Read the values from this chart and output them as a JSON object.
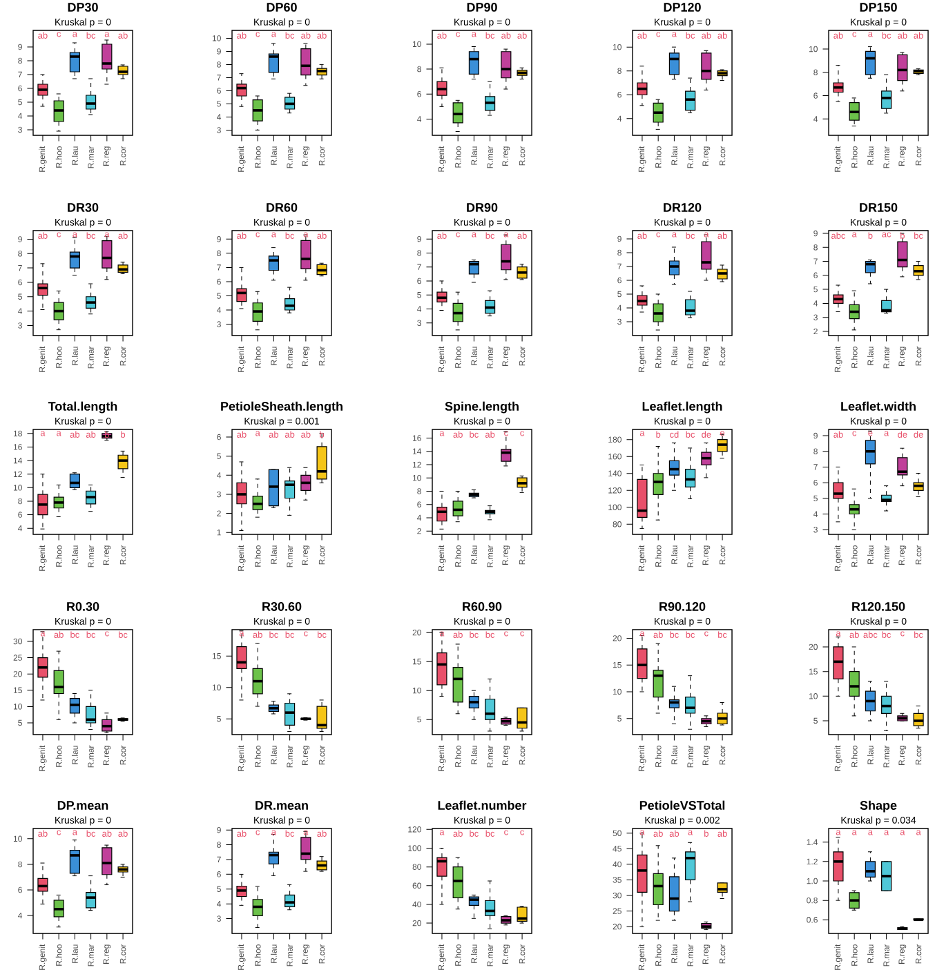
{
  "chart_data": [
    {
      "type": "box",
      "title": "DP30",
      "subtitle": "Kruskal p = 0",
      "categories": [
        "R.genit",
        "R.hoo",
        "R.lau",
        "R.mar",
        "R.reg",
        "R.cor"
      ],
      "colors": [
        "#e8506a",
        "#6cc24a",
        "#3a8fd8",
        "#4fc8d8",
        "#c0409a",
        "#f5c518"
      ],
      "ylim": [
        2.6,
        10.2
      ],
      "yticks": [
        3,
        4,
        5,
        6,
        7,
        8,
        9
      ],
      "boxes": [
        {
          "low": 4.7,
          "q1": 5.5,
          "median": 5.9,
          "q3": 6.3,
          "high": 7.0
        },
        {
          "low": 2.9,
          "q1": 3.6,
          "median": 4.4,
          "q3": 5.1,
          "high": 5.6
        },
        {
          "low": 6.7,
          "q1": 7.2,
          "median": 8.3,
          "q3": 8.6,
          "high": 9.3
        },
        {
          "low": 4.1,
          "q1": 4.5,
          "median": 4.9,
          "q3": 5.5,
          "high": 6.7
        },
        {
          "low": 6.3,
          "q1": 7.4,
          "median": 7.8,
          "q3": 9.2,
          "high": 9.5
        },
        {
          "low": 6.7,
          "q1": 7.0,
          "median": 7.2,
          "q3": 7.6,
          "high": 7.7
        }
      ],
      "annotations": [
        "ab",
        "c",
        "a",
        "bc",
        "a",
        "ab"
      ]
    },
    {
      "type": "box",
      "title": "DP60",
      "subtitle": "Kruskal p = 0",
      "categories": [
        "R.genit",
        "R.hoo",
        "R.lau",
        "R.mar",
        "R.reg",
        "R.cor"
      ],
      "colors": [
        "#e8506a",
        "#6cc24a",
        "#3a8fd8",
        "#4fc8d8",
        "#c0409a",
        "#f5c518"
      ],
      "ylim": [
        2.6,
        10.6
      ],
      "yticks": [
        3,
        4,
        5,
        6,
        7,
        8,
        9,
        10
      ],
      "boxes": [
        {
          "low": 4.8,
          "q1": 5.6,
          "median": 6.2,
          "q3": 6.5,
          "high": 7.3
        },
        {
          "low": 3.0,
          "q1": 3.7,
          "median": 4.5,
          "q3": 5.3,
          "high": 5.6
        },
        {
          "low": 6.9,
          "q1": 7.4,
          "median": 8.6,
          "q3": 8.8,
          "high": 9.6
        },
        {
          "low": 4.3,
          "q1": 4.6,
          "median": 5.0,
          "q3": 5.5,
          "high": 5.8
        },
        {
          "low": 6.4,
          "q1": 7.2,
          "median": 7.9,
          "q3": 9.2,
          "high": 9.6
        },
        {
          "low": 6.9,
          "q1": 7.2,
          "median": 7.5,
          "q3": 7.7,
          "high": 8.0
        }
      ],
      "annotations": [
        "ab",
        "c",
        "a",
        "bc",
        "ab",
        "ab"
      ]
    },
    {
      "type": "box",
      "title": "DP90",
      "subtitle": "Kruskal p = 0",
      "categories": [
        "R.genit",
        "R.hoo",
        "R.lau",
        "R.mar",
        "R.reg",
        "R.cor"
      ],
      "colors": [
        "#e8506a",
        "#6cc24a",
        "#3a8fd8",
        "#4fc8d8",
        "#c0409a",
        "#f5c518"
      ],
      "ylim": [
        2.7,
        11.1
      ],
      "yticks": [
        4,
        6,
        8,
        10
      ],
      "boxes": [
        {
          "low": 5.0,
          "q1": 5.9,
          "median": 6.4,
          "q3": 7.0,
          "high": 8.1
        },
        {
          "low": 3.0,
          "q1": 3.7,
          "median": 4.4,
          "q3": 5.3,
          "high": 5.5
        },
        {
          "low": 7.2,
          "q1": 7.6,
          "median": 8.8,
          "q3": 9.4,
          "high": 9.8
        },
        {
          "low": 4.3,
          "q1": 4.7,
          "median": 5.3,
          "q3": 5.8,
          "high": 7.0
        },
        {
          "low": 6.4,
          "q1": 7.3,
          "median": 8.0,
          "q3": 9.4,
          "high": 9.6
        },
        {
          "low": 7.2,
          "q1": 7.5,
          "median": 7.7,
          "q3": 7.9,
          "high": 8.1
        }
      ],
      "annotations": [
        "ab",
        "c",
        "a",
        "bc",
        "ab",
        "ab"
      ]
    },
    {
      "type": "box",
      "title": "DP120",
      "subtitle": "Kruskal p = 0",
      "categories": [
        "R.genit",
        "R.hoo",
        "R.lau",
        "R.mar",
        "R.reg",
        "R.cor"
      ],
      "colors": [
        "#e8506a",
        "#6cc24a",
        "#3a8fd8",
        "#4fc8d8",
        "#c0409a",
        "#f5c518"
      ],
      "ylim": [
        2.6,
        11.4
      ],
      "yticks": [
        4,
        6,
        8,
        10
      ],
      "boxes": [
        {
          "low": 5.1,
          "q1": 6.0,
          "median": 6.5,
          "q3": 7.0,
          "high": 8.4
        },
        {
          "low": 3.1,
          "q1": 3.7,
          "median": 4.5,
          "q3": 5.3,
          "high": 5.6
        },
        {
          "low": 7.3,
          "q1": 7.7,
          "median": 9.0,
          "q3": 9.5,
          "high": 10.0
        },
        {
          "low": 4.5,
          "q1": 4.7,
          "median": 5.6,
          "q3": 6.3,
          "high": 7.4
        },
        {
          "low": 6.4,
          "q1": 7.3,
          "median": 8.0,
          "q3": 9.5,
          "high": 9.7
        },
        {
          "low": 7.2,
          "q1": 7.6,
          "median": 7.8,
          "q3": 8.0,
          "high": 8.1
        }
      ],
      "annotations": [
        "ab",
        "c",
        "a",
        "bc",
        "ab",
        "ab"
      ]
    },
    {
      "type": "box",
      "title": "DP150",
      "subtitle": "Kruskal p = 0",
      "categories": [
        "R.genit",
        "R.hoo",
        "R.lau",
        "R.mar",
        "R.reg",
        "R.cor"
      ],
      "colors": [
        "#e8506a",
        "#6cc24a",
        "#3a8fd8",
        "#4fc8d8",
        "#c0409a",
        "#f5c518"
      ],
      "ylim": [
        2.6,
        11.6
      ],
      "yticks": [
        4,
        6,
        8,
        10
      ],
      "boxes": [
        {
          "low": 5.5,
          "q1": 6.3,
          "median": 6.7,
          "q3": 7.1,
          "high": 8.6
        },
        {
          "low": 3.4,
          "q1": 3.9,
          "median": 4.6,
          "q3": 5.4,
          "high": 5.8
        },
        {
          "low": 7.5,
          "q1": 7.8,
          "median": 9.2,
          "q3": 9.8,
          "high": 10.2
        },
        {
          "low": 4.5,
          "q1": 4.9,
          "median": 5.8,
          "q3": 6.4,
          "high": 7.8
        },
        {
          "low": 6.4,
          "q1": 7.3,
          "median": 8.2,
          "q3": 9.5,
          "high": 9.7
        },
        {
          "low": 7.8,
          "q1": 7.9,
          "median": 8.1,
          "q3": 8.2,
          "high": 8.3
        }
      ],
      "annotations": [
        "ab",
        "c",
        "a",
        "bc",
        "ab",
        "ab"
      ]
    },
    {
      "type": "box",
      "title": "DR30",
      "subtitle": "Kruskal p = 0",
      "categories": [
        "R.genit",
        "R.hoo",
        "R.lau",
        "R.mar",
        "R.reg",
        "R.cor"
      ],
      "colors": [
        "#e8506a",
        "#6cc24a",
        "#3a8fd8",
        "#4fc8d8",
        "#c0409a",
        "#f5c518"
      ],
      "ylim": [
        2.3,
        9.6
      ],
      "yticks": [
        3,
        4,
        5,
        6,
        7,
        8,
        9
      ],
      "boxes": [
        {
          "low": 4.1,
          "q1": 5.1,
          "median": 5.6,
          "q3": 5.9,
          "high": 7.3
        },
        {
          "low": 2.7,
          "q1": 3.4,
          "median": 4.0,
          "q3": 4.6,
          "high": 5.4
        },
        {
          "low": 6.5,
          "q1": 7.0,
          "median": 7.8,
          "q3": 8.1,
          "high": 9.1
        },
        {
          "low": 3.8,
          "q1": 4.2,
          "median": 4.6,
          "q3": 5.0,
          "high": 5.9
        },
        {
          "low": 6.2,
          "q1": 7.0,
          "median": 7.7,
          "q3": 8.9,
          "high": 9.2
        },
        {
          "low": 6.6,
          "q1": 6.7,
          "median": 6.9,
          "q3": 7.2,
          "high": 7.4
        }
      ],
      "annotations": [
        "ab",
        "c",
        "a",
        "bc",
        "a",
        "ab"
      ]
    },
    {
      "type": "box",
      "title": "DR60",
      "subtitle": "Kruskal p = 0",
      "categories": [
        "R.genit",
        "R.hoo",
        "R.lau",
        "R.mar",
        "R.reg",
        "R.cor"
      ],
      "colors": [
        "#e8506a",
        "#6cc24a",
        "#3a8fd8",
        "#4fc8d8",
        "#c0409a",
        "#f5c518"
      ],
      "ylim": [
        2.2,
        9.6
      ],
      "yticks": [
        3,
        4,
        5,
        6,
        7,
        8,
        9
      ],
      "boxes": [
        {
          "low": 4.1,
          "q1": 4.6,
          "median": 5.2,
          "q3": 5.5,
          "high": 7.0
        },
        {
          "low": 2.6,
          "q1": 3.2,
          "median": 3.9,
          "q3": 4.5,
          "high": 5.3
        },
        {
          "low": 6.1,
          "q1": 6.8,
          "median": 7.5,
          "q3": 7.8,
          "high": 8.4
        },
        {
          "low": 3.8,
          "q1": 4.0,
          "median": 4.3,
          "q3": 4.8,
          "high": 5.6
        },
        {
          "low": 6.1,
          "q1": 6.9,
          "median": 7.6,
          "q3": 8.9,
          "high": 9.3
        },
        {
          "low": 6.4,
          "q1": 6.5,
          "median": 6.8,
          "q3": 7.2,
          "high": 7.3
        }
      ],
      "annotations": [
        "ab",
        "c",
        "a",
        "bc",
        "a",
        "ab"
      ]
    },
    {
      "type": "box",
      "title": "DR90",
      "subtitle": "Kruskal p = 0",
      "categories": [
        "R.genit",
        "R.hoo",
        "R.lau",
        "R.mar",
        "R.reg",
        "R.cor"
      ],
      "colors": [
        "#e8506a",
        "#6cc24a",
        "#3a8fd8",
        "#4fc8d8",
        "#c0409a",
        "#f5c518"
      ],
      "ylim": [
        2.1,
        9.6
      ],
      "yticks": [
        3,
        4,
        5,
        6,
        7,
        8,
        9
      ],
      "boxes": [
        {
          "low": 3.9,
          "q1": 4.5,
          "median": 4.8,
          "q3": 5.2,
          "high": 6.0
        },
        {
          "low": 2.5,
          "q1": 3.1,
          "median": 3.7,
          "q3": 4.4,
          "high": 5.2
        },
        {
          "low": 5.9,
          "q1": 6.5,
          "median": 7.2,
          "q3": 7.4,
          "high": 7.5
        },
        {
          "low": 3.5,
          "q1": 3.7,
          "median": 4.1,
          "q3": 4.6,
          "high": 5.3
        },
        {
          "low": 6.1,
          "q1": 6.8,
          "median": 7.4,
          "q3": 8.6,
          "high": 9.3
        },
        {
          "low": 6.1,
          "q1": 6.2,
          "median": 6.6,
          "q3": 7.0,
          "high": 7.2
        }
      ],
      "annotations": [
        "ab",
        "c",
        "a",
        "bc",
        "a",
        "ab"
      ]
    },
    {
      "type": "box",
      "title": "DR120",
      "subtitle": "Kruskal p = 0",
      "categories": [
        "R.genit",
        "R.hoo",
        "R.lau",
        "R.mar",
        "R.reg",
        "R.cor"
      ],
      "colors": [
        "#e8506a",
        "#6cc24a",
        "#3a8fd8",
        "#4fc8d8",
        "#c0409a",
        "#f5c518"
      ],
      "ylim": [
        2.0,
        9.6
      ],
      "yticks": [
        3,
        4,
        5,
        6,
        7,
        8,
        9
      ],
      "boxes": [
        {
          "low": 3.7,
          "q1": 4.2,
          "median": 4.5,
          "q3": 4.9,
          "high": 5.6
        },
        {
          "low": 2.4,
          "q1": 3.0,
          "median": 3.6,
          "q3": 4.3,
          "high": 5.0
        },
        {
          "low": 5.7,
          "q1": 6.4,
          "median": 7.0,
          "q3": 7.4,
          "high": 8.4
        },
        {
          "low": 3.3,
          "q1": 3.5,
          "median": 3.8,
          "q3": 4.6,
          "high": 5.2
        },
        {
          "low": 6.0,
          "q1": 6.8,
          "median": 7.3,
          "q3": 8.8,
          "high": 9.3
        },
        {
          "low": 5.9,
          "q1": 6.1,
          "median": 6.5,
          "q3": 6.8,
          "high": 7.1
        }
      ],
      "annotations": [
        "ab",
        "c",
        "a",
        "bc",
        "a",
        "ab"
      ]
    },
    {
      "type": "box",
      "title": "DR150",
      "subtitle": "Kruskal p = 0",
      "categories": [
        "R.genit",
        "R.hoo",
        "R.lau",
        "R.mar",
        "R.reg",
        "R.cor"
      ],
      "colors": [
        "#e8506a",
        "#6cc24a",
        "#3a8fd8",
        "#4fc8d8",
        "#c0409a",
        "#f5c518"
      ],
      "ylim": [
        1.7,
        9.2
      ],
      "yticks": [
        2,
        3,
        4,
        5,
        6,
        7,
        8,
        9
      ],
      "boxes": [
        {
          "low": 3.4,
          "q1": 4.0,
          "median": 4.3,
          "q3": 4.6,
          "high": 5.3
        },
        {
          "low": 2.1,
          "q1": 2.9,
          "median": 3.4,
          "q3": 3.9,
          "high": 4.9
        },
        {
          "low": 5.4,
          "q1": 6.2,
          "median": 6.8,
          "q3": 7.0,
          "high": 7.1
        },
        {
          "low": 3.3,
          "q1": 3.4,
          "median": 3.5,
          "q3": 4.2,
          "high": 5.0
        },
        {
          "low": 5.9,
          "q1": 6.6,
          "median": 7.1,
          "q3": 8.4,
          "high": 9.0
        },
        {
          "low": 5.7,
          "q1": 6.0,
          "median": 6.3,
          "q3": 6.7,
          "high": 7.0
        }
      ],
      "annotations": [
        "abc",
        "a",
        "b",
        "ac",
        "b",
        "bc"
      ]
    },
    {
      "type": "box",
      "title": "Total.length",
      "subtitle": "Kruskal p = 0",
      "categories": [
        "R.genit",
        "R.hoo",
        "R.lau",
        "R.mar",
        "R.reg",
        "R.cor"
      ],
      "colors": [
        "#e8506a",
        "#6cc24a",
        "#3a8fd8",
        "#4fc8d8",
        "#c0409a",
        "#f5c518"
      ],
      "ylim": [
        3.1,
        18.6
      ],
      "yticks": [
        4,
        6,
        8,
        10,
        12,
        14,
        16,
        18
      ],
      "boxes": [
        {
          "low": 3.9,
          "q1": 6.0,
          "median": 7.5,
          "q3": 9.0,
          "high": 12.0
        },
        {
          "low": 5.7,
          "q1": 7.0,
          "median": 7.8,
          "q3": 8.6,
          "high": 10.4
        },
        {
          "low": 9.7,
          "q1": 10.0,
          "median": 10.7,
          "q3": 12.0,
          "high": 12.2
        },
        {
          "low": 6.5,
          "q1": 7.6,
          "median": 8.6,
          "q3": 9.5,
          "high": 10.4
        },
        {
          "low": 17.0,
          "q1": 17.3,
          "median": 17.6,
          "q3": 18.0,
          "high": 18.3
        },
        {
          "low": 11.5,
          "q1": 12.8,
          "median": 14.0,
          "q3": 14.8,
          "high": 15.4
        }
      ],
      "annotations": [
        "a",
        "a",
        "ab",
        "ab",
        "b",
        "b"
      ]
    },
    {
      "type": "box",
      "title": "PetioleSheath.length",
      "subtitle": "Kruskal p = 0.001",
      "categories": [
        "R.genit",
        "R.hoo",
        "R.lau",
        "R.mar",
        "R.reg",
        "R.cor"
      ],
      "colors": [
        "#e8506a",
        "#6cc24a",
        "#3a8fd8",
        "#4fc8d8",
        "#c0409a",
        "#f5c518"
      ],
      "ylim": [
        0.9,
        6.4
      ],
      "yticks": [
        1,
        2,
        3,
        4,
        5,
        6
      ],
      "boxes": [
        {
          "low": 1.1,
          "q1": 2.5,
          "median": 3.0,
          "q3": 3.6,
          "high": 4.7
        },
        {
          "low": 1.8,
          "q1": 2.2,
          "median": 2.5,
          "q3": 2.9,
          "high": 3.8
        },
        {
          "low": 2.3,
          "q1": 2.4,
          "median": 3.4,
          "q3": 4.3,
          "high": 4.3
        },
        {
          "low": 1.9,
          "q1": 2.8,
          "median": 3.5,
          "q3": 3.7,
          "high": 4.4
        },
        {
          "low": 2.7,
          "q1": 3.2,
          "median": 3.6,
          "q3": 4.0,
          "high": 4.4
        },
        {
          "low": 3.6,
          "q1": 3.8,
          "median": 4.2,
          "q3": 5.5,
          "high": 6.2
        }
      ],
      "annotations": [
        "ab",
        "a",
        "ab",
        "ab",
        "ab",
        "b"
      ]
    },
    {
      "type": "box",
      "title": "Spine.length",
      "subtitle": "Kruskal p = 0",
      "categories": [
        "R.genit",
        "R.hoo",
        "R.lau",
        "R.mar",
        "R.reg",
        "R.cor"
      ],
      "colors": [
        "#e8506a",
        "#6cc24a",
        "#3a8fd8",
        "#4fc8d8",
        "#c0409a",
        "#f5c518"
      ],
      "ylim": [
        1.5,
        17.3
      ],
      "yticks": [
        2,
        4,
        6,
        8,
        10,
        12,
        14,
        16
      ],
      "boxes": [
        {
          "low": 2.3,
          "q1": 3.5,
          "median": 4.9,
          "q3": 5.6,
          "high": 8.0
        },
        {
          "low": 3.4,
          "q1": 4.3,
          "median": 5.2,
          "q3": 6.5,
          "high": 8.0
        },
        {
          "low": 7.0,
          "q1": 7.2,
          "median": 7.5,
          "q3": 7.7,
          "high": 8.2
        },
        {
          "low": 3.7,
          "q1": 4.6,
          "median": 4.9,
          "q3": 5.1,
          "high": 5.8
        },
        {
          "low": 11.8,
          "q1": 12.5,
          "median": 13.8,
          "q3": 14.3,
          "high": 17.0
        },
        {
          "low": 7.8,
          "q1": 8.6,
          "median": 9.2,
          "q3": 10.0,
          "high": 10.3
        }
      ],
      "annotations": [
        "a",
        "ab",
        "bc",
        "ab",
        "c",
        "c"
      ]
    },
    {
      "type": "box",
      "title": "Leaflet.length",
      "subtitle": "Kruskal p = 0",
      "categories": [
        "R.genit",
        "R.hoo",
        "R.lau",
        "R.mar",
        "R.reg",
        "R.cor"
      ],
      "colors": [
        "#e8506a",
        "#6cc24a",
        "#3a8fd8",
        "#4fc8d8",
        "#c0409a",
        "#f5c518"
      ],
      "ylim": [
        68,
        192
      ],
      "yticks": [
        80,
        100,
        120,
        140,
        160,
        180
      ],
      "boxes": [
        {
          "low": 75,
          "q1": 88,
          "median": 96,
          "q3": 133,
          "high": 150
        },
        {
          "low": 85,
          "q1": 115,
          "median": 130,
          "q3": 140,
          "high": 172
        },
        {
          "low": 120,
          "q1": 138,
          "median": 145,
          "q3": 155,
          "high": 176
        },
        {
          "low": 110,
          "q1": 124,
          "median": 133,
          "q3": 145,
          "high": 170
        },
        {
          "low": 135,
          "q1": 150,
          "median": 158,
          "q3": 165,
          "high": 176
        },
        {
          "low": 158,
          "q1": 166,
          "median": 174,
          "q3": 180,
          "high": 186
        }
      ],
      "annotations": [
        "a",
        "b",
        "cd",
        "bc",
        "de",
        "e"
      ]
    },
    {
      "type": "box",
      "title": "Leaflet.width",
      "subtitle": "Kruskal p = 0",
      "categories": [
        "R.genit",
        "R.hoo",
        "R.lau",
        "R.mar",
        "R.reg",
        "R.cor"
      ],
      "colors": [
        "#e8506a",
        "#6cc24a",
        "#3a8fd8",
        "#4fc8d8",
        "#c0409a",
        "#f5c518"
      ],
      "ylim": [
        2.7,
        9.4
      ],
      "yticks": [
        3,
        4,
        5,
        6,
        7,
        8,
        9
      ],
      "boxes": [
        {
          "low": 3.5,
          "q1": 5.0,
          "median": 5.3,
          "q3": 6.0,
          "high": 7.0
        },
        {
          "low": 3.0,
          "q1": 4.0,
          "median": 4.3,
          "q3": 4.6,
          "high": 5.6
        },
        {
          "low": 5.0,
          "q1": 7.2,
          "median": 8.0,
          "q3": 8.7,
          "high": 9.3
        },
        {
          "low": 4.2,
          "q1": 4.8,
          "median": 4.9,
          "q3": 5.2,
          "high": 5.8
        },
        {
          "low": 5.8,
          "q1": 6.5,
          "median": 6.7,
          "q3": 7.6,
          "high": 8.2
        },
        {
          "low": 5.1,
          "q1": 5.5,
          "median": 5.8,
          "q3": 6.0,
          "high": 6.6
        }
      ],
      "annotations": [
        "ab",
        "c",
        "e",
        "a",
        "de",
        "de"
      ]
    },
    {
      "type": "box",
      "title": "R0.30",
      "subtitle": "Kruskal p = 0",
      "categories": [
        "R.genit",
        "R.hoo",
        "R.lau",
        "R.mar",
        "R.reg",
        "R.cor"
      ],
      "colors": [
        "#e8506a",
        "#6cc24a",
        "#3a8fd8",
        "#4fc8d8",
        "#c0409a",
        "#f5c518"
      ],
      "ylim": [
        1.4,
        33.6
      ],
      "yticks": [
        5,
        10,
        15,
        20,
        25,
        30
      ],
      "boxes": [
        {
          "low": 12,
          "q1": 19,
          "median": 22,
          "q3": 25,
          "high": 33
        },
        {
          "low": 6,
          "q1": 14,
          "median": 16,
          "q3": 21,
          "high": 27
        },
        {
          "low": 5,
          "q1": 8,
          "median": 10.5,
          "q3": 12.5,
          "high": 14
        },
        {
          "low": 3,
          "q1": 5,
          "median": 6,
          "q3": 10,
          "high": 15
        },
        {
          "low": 2,
          "q1": 2.5,
          "median": 4,
          "q3": 6,
          "high": 8
        },
        {
          "low": 5.5,
          "q1": 5.8,
          "median": 6,
          "q3": 6.3,
          "high": 6.5
        }
      ],
      "annotations": [
        "a",
        "ab",
        "bc",
        "bc",
        "c",
        "bc"
      ]
    },
    {
      "type": "box",
      "title": "R30.60",
      "subtitle": "Kruskal p = 0",
      "categories": [
        "R.genit",
        "R.hoo",
        "R.lau",
        "R.mar",
        "R.reg",
        "R.cor"
      ],
      "colors": [
        "#e8506a",
        "#6cc24a",
        "#3a8fd8",
        "#4fc8d8",
        "#c0409a",
        "#f5c518"
      ],
      "ylim": [
        2.5,
        19.2
      ],
      "yticks": [
        5,
        10,
        15
      ],
      "boxes": [
        {
          "low": 8,
          "q1": 13,
          "median": 14,
          "q3": 16.5,
          "high": 19
        },
        {
          "low": 7,
          "q1": 9,
          "median": 11,
          "q3": 13,
          "high": 17
        },
        {
          "low": 5.8,
          "q1": 6.2,
          "median": 6.7,
          "q3": 7.2,
          "high": 7.8
        },
        {
          "low": 3,
          "q1": 4,
          "median": 6,
          "q3": 7.5,
          "high": 9
        },
        {
          "low": 4.8,
          "q1": 4.9,
          "median": 5,
          "q3": 5.1,
          "high": 5.2
        },
        {
          "low": 3,
          "q1": 3.5,
          "median": 4,
          "q3": 7,
          "high": 8
        }
      ],
      "annotations": [
        "a",
        "ab",
        "bc",
        "bc",
        "c",
        "bc"
      ]
    },
    {
      "type": "box",
      "title": "R60.90",
      "subtitle": "Kruskal p = 0",
      "categories": [
        "R.genit",
        "R.hoo",
        "R.lau",
        "R.mar",
        "R.reg",
        "R.cor"
      ],
      "colors": [
        "#e8506a",
        "#6cc24a",
        "#3a8fd8",
        "#4fc8d8",
        "#c0409a",
        "#f5c518"
      ],
      "ylim": [
        2.4,
        20.5
      ],
      "yticks": [
        5,
        10,
        15,
        20
      ],
      "boxes": [
        {
          "low": 9,
          "q1": 11,
          "median": 14.5,
          "q3": 16.5,
          "high": 20
        },
        {
          "low": 6,
          "q1": 8,
          "median": 12,
          "q3": 14,
          "high": 18
        },
        {
          "low": 5,
          "q1": 7,
          "median": 8,
          "q3": 9,
          "high": 10
        },
        {
          "low": 3,
          "q1": 5,
          "median": 6,
          "q3": 8.5,
          "high": 12
        },
        {
          "low": 4,
          "q1": 4.2,
          "median": 4.7,
          "q3": 5.2,
          "high": 5.4
        },
        {
          "low": 3,
          "q1": 3.5,
          "median": 4.5,
          "q3": 7,
          "high": 7
        }
      ],
      "annotations": [
        "a",
        "ab",
        "bc",
        "bc",
        "c",
        "c"
      ]
    },
    {
      "type": "box",
      "title": "R90.120",
      "subtitle": "Kruskal p = 0",
      "categories": [
        "R.genit",
        "R.hoo",
        "R.lau",
        "R.mar",
        "R.reg",
        "R.cor"
      ],
      "colors": [
        "#e8506a",
        "#6cc24a",
        "#3a8fd8",
        "#4fc8d8",
        "#c0409a",
        "#f5c518"
      ],
      "ylim": [
        2,
        21.6
      ],
      "yticks": [
        5,
        10,
        15,
        20
      ],
      "boxes": [
        {
          "low": 10,
          "q1": 12.5,
          "median": 15,
          "q3": 18,
          "high": 20.5
        },
        {
          "low": 6,
          "q1": 9,
          "median": 13,
          "q3": 14,
          "high": 19
        },
        {
          "low": 4,
          "q1": 7,
          "median": 8,
          "q3": 8.5,
          "high": 11
        },
        {
          "low": 3,
          "q1": 6,
          "median": 7,
          "q3": 9,
          "high": 13
        },
        {
          "low": 3.5,
          "q1": 4,
          "median": 4.5,
          "q3": 5,
          "high": 5.5
        },
        {
          "low": 3.8,
          "q1": 4,
          "median": 5,
          "q3": 6,
          "high": 8
        }
      ],
      "annotations": [
        "a",
        "ab",
        "bc",
        "bc",
        "c",
        "bc"
      ]
    },
    {
      "type": "box",
      "title": "R120.150",
      "subtitle": "Kruskal p = 0",
      "categories": [
        "R.genit",
        "R.hoo",
        "R.lau",
        "R.mar",
        "R.reg",
        "R.cor"
      ],
      "colors": [
        "#e8506a",
        "#6cc24a",
        "#3a8fd8",
        "#4fc8d8",
        "#c0409a",
        "#f5c518"
      ],
      "ylim": [
        2.2,
        23.5
      ],
      "yticks": [
        5,
        10,
        15,
        20
      ],
      "boxes": [
        {
          "low": 10,
          "q1": 13.5,
          "median": 17,
          "q3": 20,
          "high": 22
        },
        {
          "low": 6,
          "q1": 10,
          "median": 12,
          "q3": 15,
          "high": 20
        },
        {
          "low": 5,
          "q1": 7,
          "median": 9,
          "q3": 11,
          "high": 13
        },
        {
          "low": 3,
          "q1": 6.5,
          "median": 8,
          "q3": 10,
          "high": 13
        },
        {
          "low": 5,
          "q1": 5,
          "median": 5.5,
          "q3": 6,
          "high": 6.5
        },
        {
          "low": 3.5,
          "q1": 4,
          "median": 5,
          "q3": 6.5,
          "high": 8
        }
      ],
      "annotations": [
        "a",
        "ab",
        "abc",
        "bc",
        "c",
        "bc"
      ]
    },
    {
      "type": "box",
      "title": "DP.mean",
      "subtitle": "Kruskal p = 0",
      "categories": [
        "R.genit",
        "R.hoo",
        "R.lau",
        "R.mar",
        "R.reg",
        "R.cor"
      ],
      "colors": [
        "#e8506a",
        "#6cc24a",
        "#3a8fd8",
        "#4fc8d8",
        "#c0409a",
        "#f5c518"
      ],
      "ylim": [
        2.6,
        10.8
      ],
      "yticks": [
        4,
        6,
        8,
        10
      ],
      "boxes": [
        {
          "low": 4.9,
          "q1": 5.9,
          "median": 6.3,
          "q3": 6.9,
          "high": 8.1
        },
        {
          "low": 3.1,
          "q1": 3.9,
          "median": 4.5,
          "q3": 5.2,
          "high": 5.6
        },
        {
          "low": 7.1,
          "q1": 7.3,
          "median": 8.7,
          "q3": 9.1,
          "high": 9.9
        },
        {
          "low": 4.4,
          "q1": 4.6,
          "median": 5.4,
          "q3": 5.8,
          "high": 7.1
        },
        {
          "low": 6.4,
          "q1": 7.2,
          "median": 8.1,
          "q3": 9.3,
          "high": 9.5
        },
        {
          "low": 7.0,
          "q1": 7.4,
          "median": 7.6,
          "q3": 7.8,
          "high": 8.0
        }
      ],
      "annotations": [
        "ab",
        "c",
        "a",
        "bc",
        "ab",
        "ab"
      ]
    },
    {
      "type": "box",
      "title": "DR.mean",
      "subtitle": "Kruskal p = 0",
      "categories": [
        "R.genit",
        "R.hoo",
        "R.lau",
        "R.mar",
        "R.reg",
        "R.cor"
      ],
      "colors": [
        "#e8506a",
        "#6cc24a",
        "#3a8fd8",
        "#4fc8d8",
        "#c0409a",
        "#f5c518"
      ],
      "ylim": [
        2.0,
        9.1
      ],
      "yticks": [
        3,
        4,
        5,
        6,
        7,
        8,
        9
      ],
      "boxes": [
        {
          "low": 3.9,
          "q1": 4.5,
          "median": 4.9,
          "q3": 5.2,
          "high": 6.0
        },
        {
          "low": 2.4,
          "q1": 3.2,
          "median": 3.8,
          "q3": 4.3,
          "high": 5.2
        },
        {
          "low": 5.9,
          "q1": 6.7,
          "median": 7.3,
          "q3": 7.5,
          "high": 8.7
        },
        {
          "low": 3.6,
          "q1": 3.8,
          "median": 4.1,
          "q3": 4.6,
          "high": 5.3
        },
        {
          "low": 6.2,
          "q1": 7.0,
          "median": 7.4,
          "q3": 8.5,
          "high": 8.9
        },
        {
          "low": 6.2,
          "q1": 6.3,
          "median": 6.6,
          "q3": 6.9,
          "high": 7.2
        }
      ],
      "annotations": [
        "ab",
        "c",
        "a",
        "bc",
        "a",
        "ab"
      ]
    },
    {
      "type": "box",
      "title": "Leaflet.number",
      "subtitle": "Kruskal p = 0",
      "categories": [
        "R.genit",
        "R.hoo",
        "R.lau",
        "R.mar",
        "R.reg",
        "R.cor"
      ],
      "colors": [
        "#e8506a",
        "#6cc24a",
        "#3a8fd8",
        "#4fc8d8",
        "#c0409a",
        "#f5c518"
      ],
      "ylim": [
        9,
        121
      ],
      "yticks": [
        20,
        40,
        60,
        80,
        100,
        120
      ],
      "boxes": [
        {
          "low": 40,
          "q1": 70,
          "median": 86,
          "q3": 90,
          "high": 100
        },
        {
          "low": 35,
          "q1": 47,
          "median": 65,
          "q3": 80,
          "high": 90
        },
        {
          "low": 25,
          "q1": 39,
          "median": 45,
          "q3": 48,
          "high": 50
        },
        {
          "low": 14,
          "q1": 28,
          "median": 33,
          "q3": 44,
          "high": 65
        },
        {
          "low": 18,
          "q1": 20,
          "median": 23,
          "q3": 27,
          "high": 28
        },
        {
          "low": 20,
          "q1": 22,
          "median": 25,
          "q3": 37,
          "high": 38
        }
      ],
      "annotations": [
        "a",
        "ab",
        "bc",
        "bc",
        "c",
        "c"
      ]
    },
    {
      "type": "box",
      "title": "PetioleVSTotal",
      "subtitle": "Kruskal p = 0.002",
      "categories": [
        "R.genit",
        "R.hoo",
        "R.lau",
        "R.mar",
        "R.reg",
        "R.cor"
      ],
      "colors": [
        "#e8506a",
        "#6cc24a",
        "#3a8fd8",
        "#4fc8d8",
        "#c0409a",
        "#f5c518"
      ],
      "ylim": [
        17.8,
        51.5
      ],
      "yticks": [
        20,
        25,
        30,
        35,
        40,
        45,
        50
      ],
      "boxes": [
        {
          "low": 20,
          "q1": 31,
          "median": 38,
          "q3": 43,
          "high": 50
        },
        {
          "low": 22,
          "q1": 27,
          "median": 33,
          "q3": 37,
          "high": 46
        },
        {
          "low": 22,
          "q1": 25,
          "median": 29,
          "q3": 36,
          "high": 42
        },
        {
          "low": 28,
          "q1": 35,
          "median": 42,
          "q3": 44,
          "high": 47
        },
        {
          "low": 19,
          "q1": 19.5,
          "median": 20,
          "q3": 21,
          "high": 21.5
        },
        {
          "low": 29,
          "q1": 31,
          "median": 32,
          "q3": 34,
          "high": 34
        }
      ],
      "annotations": [
        "a",
        "ab",
        "ab",
        "a",
        "b",
        "ab"
      ]
    },
    {
      "type": "box",
      "title": "Shape",
      "subtitle": "Kruskal p = 0.034",
      "categories": [
        "R.genit",
        "R.hoo",
        "R.lau",
        "R.mar",
        "R.reg",
        "R.cor"
      ],
      "colors": [
        "#e8506a",
        "#6cc24a",
        "#3a8fd8",
        "#4fc8d8",
        "#c0409a",
        "#f5c518"
      ],
      "ylim": [
        0.46,
        1.54
      ],
      "yticks": [
        {
          "value": 0.6,
          "label": "0.6"
        },
        {
          "value": 0.8,
          "label": "0.8"
        },
        {
          "value": 1.0,
          "label": "1.0"
        },
        {
          "value": 1.2,
          "label": "1.2"
        },
        {
          "value": 1.4,
          "label": "1.4"
        }
      ],
      "boxes": [
        {
          "low": 0.8,
          "q1": 1.0,
          "median": 1.2,
          "q3": 1.3,
          "high": 1.45
        },
        {
          "low": 0.7,
          "q1": 0.72,
          "median": 0.8,
          "q3": 0.88,
          "high": 0.9
        },
        {
          "low": 1.0,
          "q1": 1.04,
          "median": 1.1,
          "q3": 1.2,
          "high": 1.3
        },
        {
          "low": 0.9,
          "q1": 0.9,
          "median": 1.05,
          "q3": 1.2,
          "high": 1.2
        },
        {
          "low": 0.5,
          "q1": 0.5,
          "median": 0.51,
          "q3": 0.52,
          "high": 0.53
        },
        {
          "low": 0.6,
          "q1": 0.6,
          "median": 0.6,
          "q3": 0.61,
          "high": 0.61
        }
      ],
      "annotations": [
        "a",
        "a",
        "a",
        "a",
        "a",
        "a"
      ]
    }
  ]
}
